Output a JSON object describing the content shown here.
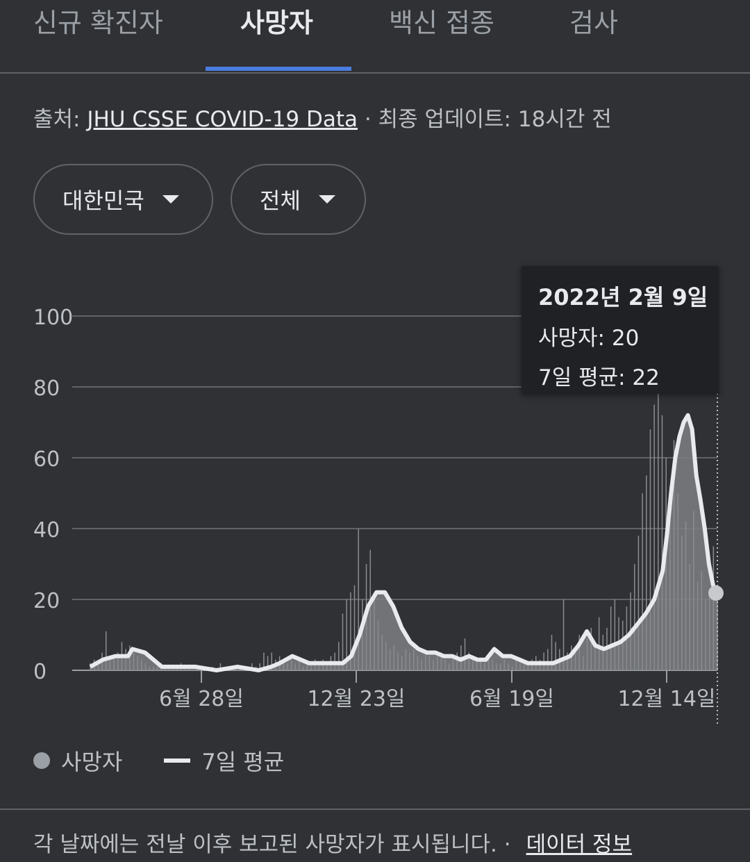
{
  "tabs": [
    {
      "label": "신규 확진자"
    },
    {
      "label": "사망자",
      "active": true
    },
    {
      "label": "백신 접종"
    },
    {
      "label": "검사"
    }
  ],
  "source": {
    "prefix": "출처: ",
    "link": "JHU CSSE COVID-19 Data",
    "suffix": " · 최종 업데이트: 18시간 전"
  },
  "filters": {
    "region": "대한민국",
    "scope": "전체"
  },
  "tooltip": {
    "date": "2022년 2월 9일",
    "deaths": "사망자: 20",
    "avg": "7일 평균: 22"
  },
  "legend": {
    "deaths": "사망자",
    "avg": "7일 평균"
  },
  "footer": {
    "text": "각 날짜에는 전날 이후 보고된 사망자가 표시됩니다.  ·",
    "link": "데이터 정보"
  },
  "colors": {
    "background": "#303134",
    "tab_active": "#4a7ce0",
    "bars": "#7d7f83",
    "avg_line": "#e8eaed",
    "grid": "#5f6368"
  },
  "chart_data": {
    "type": "area",
    "y_ticks": [
      0,
      20,
      40,
      60,
      80,
      100
    ],
    "ylim": [
      0,
      100
    ],
    "x_tick_labels": [
      "6월 28일",
      "12월 23일",
      "6월 19일",
      "12월 14일"
    ],
    "series": [
      {
        "name": "사망자",
        "type": "bar"
      },
      {
        "name": "7일 평균",
        "type": "line"
      }
    ],
    "avg_points": [
      [
        0,
        1
      ],
      [
        3,
        3
      ],
      [
        6,
        4
      ],
      [
        9,
        4
      ],
      [
        10,
        6
      ],
      [
        13,
        5
      ],
      [
        15,
        3
      ],
      [
        17,
        1
      ],
      [
        20,
        1
      ],
      [
        25,
        1
      ],
      [
        30,
        0
      ],
      [
        35,
        1
      ],
      [
        40,
        0
      ],
      [
        43,
        1
      ],
      [
        45,
        2
      ],
      [
        48,
        4
      ],
      [
        50,
        3
      ],
      [
        52,
        2
      ],
      [
        55,
        2
      ],
      [
        58,
        2
      ],
      [
        60,
        2
      ],
      [
        62,
        4
      ],
      [
        64,
        10
      ],
      [
        66,
        18
      ],
      [
        68,
        22
      ],
      [
        70,
        22
      ],
      [
        72,
        18
      ],
      [
        74,
        12
      ],
      [
        76,
        8
      ],
      [
        78,
        6
      ],
      [
        80,
        5
      ],
      [
        82,
        5
      ],
      [
        84,
        4
      ],
      [
        86,
        4
      ],
      [
        88,
        3
      ],
      [
        90,
        4
      ],
      [
        92,
        3
      ],
      [
        94,
        3
      ],
      [
        96,
        6
      ],
      [
        98,
        4
      ],
      [
        100,
        4
      ],
      [
        102,
        3
      ],
      [
        104,
        2
      ],
      [
        106,
        2
      ],
      [
        108,
        2
      ],
      [
        110,
        2
      ],
      [
        112,
        3
      ],
      [
        114,
        4
      ],
      [
        116,
        7
      ],
      [
        118,
        11
      ],
      [
        120,
        7
      ],
      [
        122,
        6
      ],
      [
        124,
        7
      ],
      [
        126,
        8
      ],
      [
        128,
        10
      ],
      [
        130,
        13
      ],
      [
        132,
        16
      ],
      [
        134,
        20
      ],
      [
        136,
        28
      ],
      [
        137,
        38
      ],
      [
        138,
        50
      ],
      [
        139,
        60
      ],
      [
        140,
        66
      ],
      [
        141,
        70
      ],
      [
        142,
        72
      ],
      [
        143,
        68
      ],
      [
        144,
        55
      ],
      [
        145,
        48
      ],
      [
        146,
        40
      ],
      [
        147,
        30
      ],
      [
        148,
        24
      ],
      [
        149,
        22
      ]
    ],
    "bar_values": [
      2,
      3,
      2,
      5,
      11,
      3,
      4,
      5,
      8,
      6,
      7,
      5,
      4,
      3,
      2,
      1,
      1,
      1,
      2,
      1,
      1,
      1,
      1,
      2,
      1,
      1,
      0,
      1,
      1,
      0,
      1,
      1,
      0,
      2,
      1,
      1,
      0,
      1,
      1,
      0,
      1,
      2,
      1,
      2,
      5,
      4,
      5,
      3,
      4,
      2,
      2,
      3,
      2,
      3,
      1,
      2,
      2,
      3,
      2,
      3,
      2,
      4,
      5,
      8,
      16,
      20,
      22,
      24,
      40,
      20,
      30,
      34,
      22,
      14,
      10,
      8,
      6,
      7,
      5,
      4,
      6,
      5,
      6,
      4,
      3,
      5,
      4,
      3,
      4,
      5,
      3,
      2,
      4,
      5,
      7,
      9,
      5,
      4,
      3,
      3,
      2,
      4,
      3,
      2,
      2,
      3,
      2,
      1,
      3,
      2,
      2,
      2,
      3,
      4,
      3,
      5,
      6,
      10,
      8,
      6,
      20,
      5,
      7,
      6,
      10,
      4,
      9,
      12,
      8,
      15,
      10,
      12,
      18,
      20,
      15,
      14,
      18,
      22,
      30,
      38,
      50,
      55,
      68,
      75,
      80,
      72,
      60,
      52,
      65,
      50,
      38,
      42,
      30,
      45,
      25,
      28,
      20,
      22,
      35,
      20
    ]
  }
}
